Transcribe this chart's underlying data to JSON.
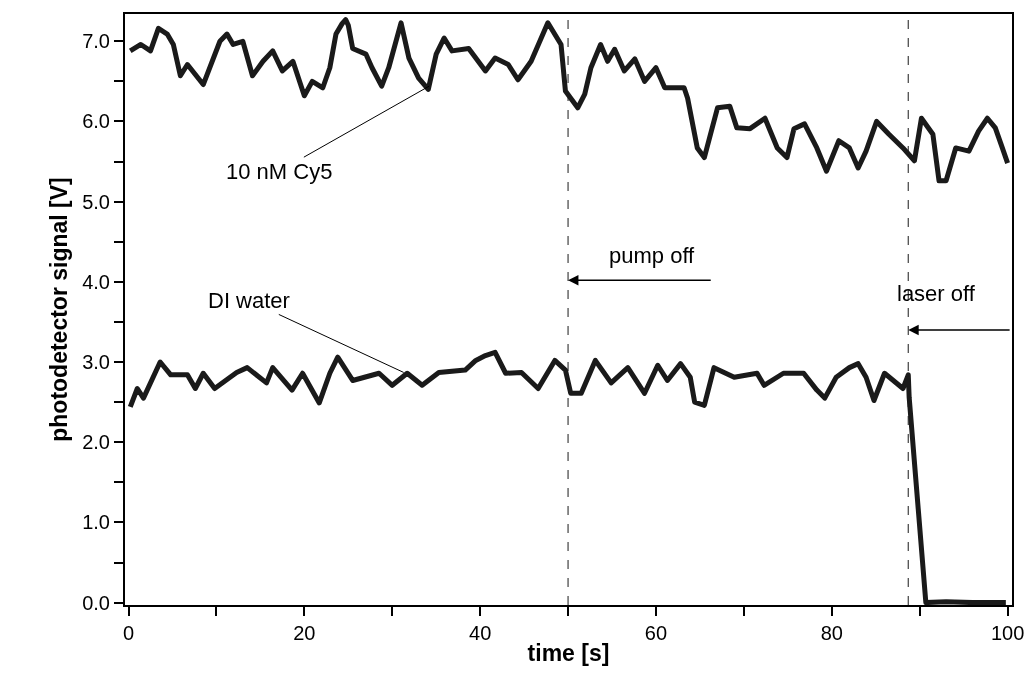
{
  "chart_data": {
    "type": "line",
    "xlabel": "time [s]",
    "ylabel": "photodetector signal [V]",
    "xlim": [
      -0.4,
      100.5
    ],
    "ylim": [
      -0.03,
      7.34
    ],
    "xticks": [
      0,
      {
        "value": 10,
        "label": null
      },
      20,
      {
        "value": 30,
        "label": null
      },
      40,
      {
        "value": 50,
        "label": null
      },
      60,
      {
        "value": 70,
        "label": null
      },
      80,
      {
        "value": 90,
        "label": null
      },
      100
    ],
    "yticks": [
      {
        "value": 0,
        "label": "0.0"
      },
      {
        "value": 0.5,
        "label": null
      },
      {
        "value": 1,
        "label": "1.0"
      },
      {
        "value": 1.5,
        "label": null
      },
      {
        "value": 2,
        "label": "2.0"
      },
      {
        "value": 2.5,
        "label": null
      },
      {
        "value": 3,
        "label": "3.0"
      },
      {
        "value": 3.5,
        "label": null
      },
      {
        "value": 4,
        "label": "4.0"
      },
      {
        "value": 4.5,
        "label": null
      },
      {
        "value": 5,
        "label": "5.0"
      },
      {
        "value": 5.5,
        "label": null
      },
      {
        "value": 6,
        "label": "6.0"
      },
      {
        "value": 6.5,
        "label": null
      },
      {
        "value": 7,
        "label": "7.0"
      }
    ],
    "grid": false,
    "legend": false,
    "marker": "none",
    "line_style": "solid",
    "series": [
      {
        "color": "#1a1a1a",
        "x": [
          0.2,
          1.4,
          2.5,
          3.4,
          4.4,
          5.1,
          5.9,
          6.7,
          8.5,
          10.4,
          11.2,
          11.9,
          13.0,
          14.1,
          15.3,
          16.4,
          17.5,
          18.7,
          20.0,
          20.9,
          22.1,
          22.9,
          23.6,
          24.3,
          24.7,
          25.0,
          25.5,
          27.0,
          27.7,
          28.8,
          29.6,
          31.0,
          31.9,
          33.0,
          34.1,
          35.0,
          35.9,
          36.8,
          38.7,
          40.6,
          41.7,
          43.2,
          44.3,
          45.8,
          47.7,
          49.2,
          49.7,
          51.1,
          51.9,
          52.6,
          53.7,
          54.5,
          55.3,
          56.4,
          57.6,
          58.7,
          60.0,
          61.0,
          63.2,
          63.6,
          64.7,
          65.5,
          66.2,
          67.0,
          68.4,
          69.2,
          70.7,
          72.4,
          73.8,
          74.9,
          75.7,
          76.9,
          78.3,
          79.4,
          80.8,
          82.0,
          83.0,
          83.9,
          85.1,
          86.5,
          88.1,
          89.4,
          90.2,
          91.5,
          92.2,
          93.0,
          94.1,
          95.6,
          96.7,
          97.7,
          98.6,
          99.4,
          100.0
        ],
        "values": [
          6.88,
          6.96,
          6.88,
          7.16,
          7.09,
          6.96,
          6.57,
          6.71,
          6.46,
          7.0,
          7.09,
          6.96,
          7.0,
          6.57,
          6.75,
          6.88,
          6.63,
          6.75,
          6.32,
          6.5,
          6.42,
          6.67,
          7.09,
          7.22,
          7.27,
          7.2,
          6.91,
          6.84,
          6.67,
          6.44,
          6.67,
          7.23,
          6.79,
          6.54,
          6.4,
          6.84,
          7.04,
          6.88,
          6.91,
          6.63,
          6.79,
          6.71,
          6.52,
          6.75,
          7.23,
          6.96,
          6.38,
          6.17,
          6.34,
          6.67,
          6.96,
          6.75,
          6.9,
          6.63,
          6.78,
          6.5,
          6.67,
          6.42,
          6.42,
          6.29,
          5.67,
          5.55,
          5.84,
          6.17,
          6.19,
          5.92,
          5.91,
          6.04,
          5.67,
          5.55,
          5.91,
          5.97,
          5.67,
          5.38,
          5.76,
          5.67,
          5.42,
          5.63,
          6.0,
          5.84,
          5.67,
          5.51,
          6.04,
          5.84,
          5.26,
          5.26,
          5.67,
          5.63,
          5.88,
          6.04,
          5.92,
          5.67,
          5.48
        ]
      },
      {
        "color": "#1a1a1a",
        "x": [
          0.2,
          1.0,
          1.7,
          3.6,
          4.8,
          6.7,
          7.6,
          8.5,
          9.8,
          12.3,
          13.5,
          15.7,
          16.4,
          18.6,
          19.8,
          21.7,
          22.9,
          23.8,
          25.5,
          28.5,
          30.0,
          31.7,
          33.4,
          35.3,
          38.3,
          39.5,
          40.6,
          41.7,
          42.9,
          44.7,
          46.6,
          48.5,
          49.7,
          50.3,
          51.5,
          53.1,
          54.9,
          56.8,
          58.7,
          60.2,
          61.3,
          62.8,
          63.9,
          64.4,
          65.5,
          66.6,
          68.9,
          71.5,
          72.3,
          74.5,
          76.8,
          78.3,
          79.2,
          80.5,
          82.0,
          83.0,
          83.9,
          84.8,
          86.0,
          88.1,
          88.7,
          88.8,
          90.7,
          93.0,
          96.0,
          99.8
        ],
        "values": [
          2.44,
          2.67,
          2.55,
          3.0,
          2.84,
          2.84,
          2.67,
          2.86,
          2.67,
          2.87,
          2.93,
          2.74,
          2.93,
          2.65,
          2.86,
          2.49,
          2.86,
          3.06,
          2.77,
          2.86,
          2.71,
          2.86,
          2.71,
          2.87,
          2.9,
          3.02,
          3.08,
          3.12,
          2.86,
          2.87,
          2.67,
          3.02,
          2.9,
          2.61,
          2.61,
          3.02,
          2.74,
          2.93,
          2.61,
          2.96,
          2.77,
          2.98,
          2.81,
          2.5,
          2.46,
          2.93,
          2.81,
          2.86,
          2.71,
          2.86,
          2.86,
          2.65,
          2.55,
          2.81,
          2.93,
          2.98,
          2.81,
          2.52,
          2.86,
          2.67,
          2.84,
          2.56,
          0.0,
          0.01,
          0.0,
          0.0
        ]
      }
    ],
    "ref_lines": [
      {
        "axis": "x",
        "value": 50,
        "label": "pump off",
        "color": "#404040",
        "line_style": "dashed"
      },
      {
        "axis": "x",
        "value": 88.7,
        "label": "laser off",
        "color": "#404040",
        "line_style": "dashed"
      }
    ],
    "annotations": [
      {
        "text": "10 nM Cy5",
        "x": 34.2,
        "y": 6.44
      },
      {
        "text": "DI water",
        "x": 31.3,
        "y": 2.87
      }
    ]
  }
}
